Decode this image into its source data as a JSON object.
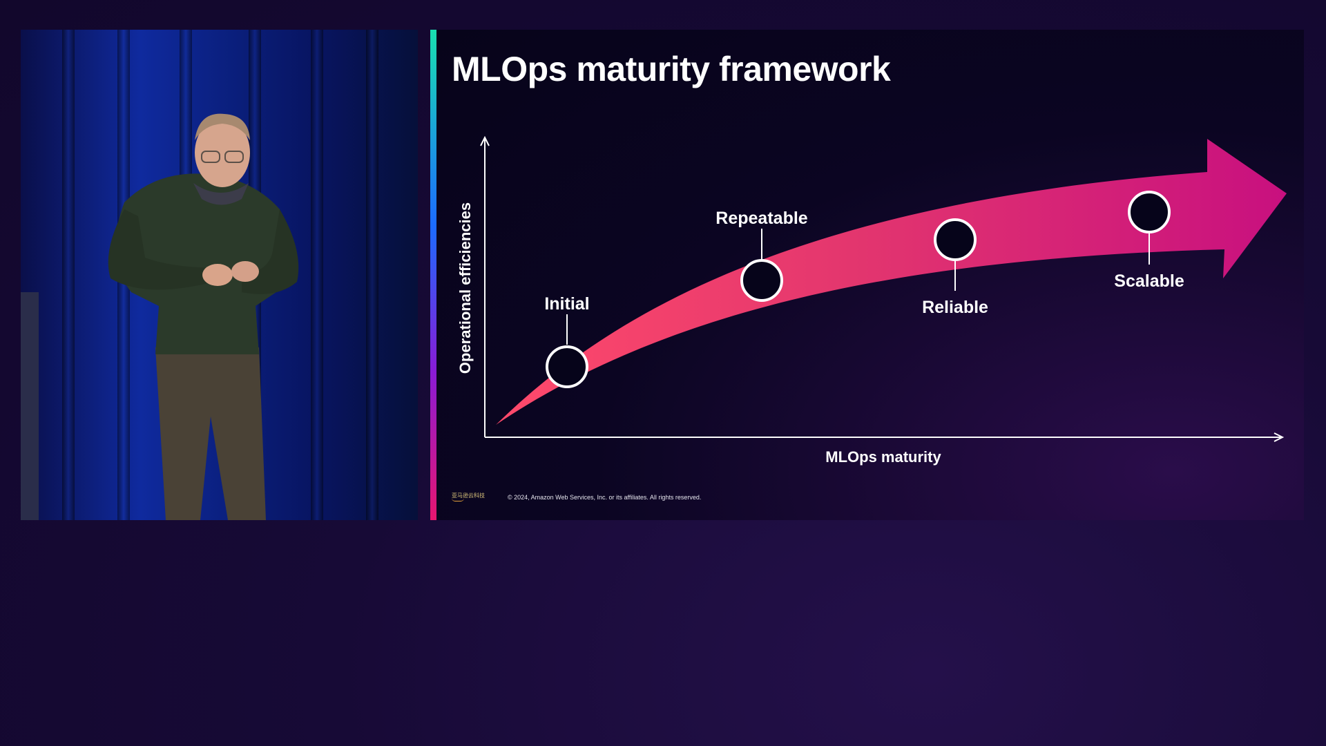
{
  "slide": {
    "title": "MLOps maturity framework",
    "footer": {
      "logo_text": "亚马逊云科技",
      "copyright": "© 2024, Amazon Web Services, Inc. or its affiliates. All rights reserved."
    }
  },
  "diagram": {
    "x_axis_label": "MLOps maturity",
    "y_axis_label": "Operational efficiencies",
    "stages": [
      {
        "label": "Initial",
        "label_position": "above"
      },
      {
        "label": "Repeatable",
        "label_position": "above"
      },
      {
        "label": "Reliable",
        "label_position": "below"
      },
      {
        "label": "Scalable",
        "label_position": "below"
      }
    ],
    "colors": {
      "arrow_start": "#ff4a6b",
      "arrow_mid": "#e3366e",
      "arrow_end": "#c8107f",
      "node_fill": "#06041a",
      "node_stroke": "#ffffff",
      "axis": "#ffffff"
    }
  },
  "speaker_video": {
    "description_icon": "presenter-video"
  }
}
